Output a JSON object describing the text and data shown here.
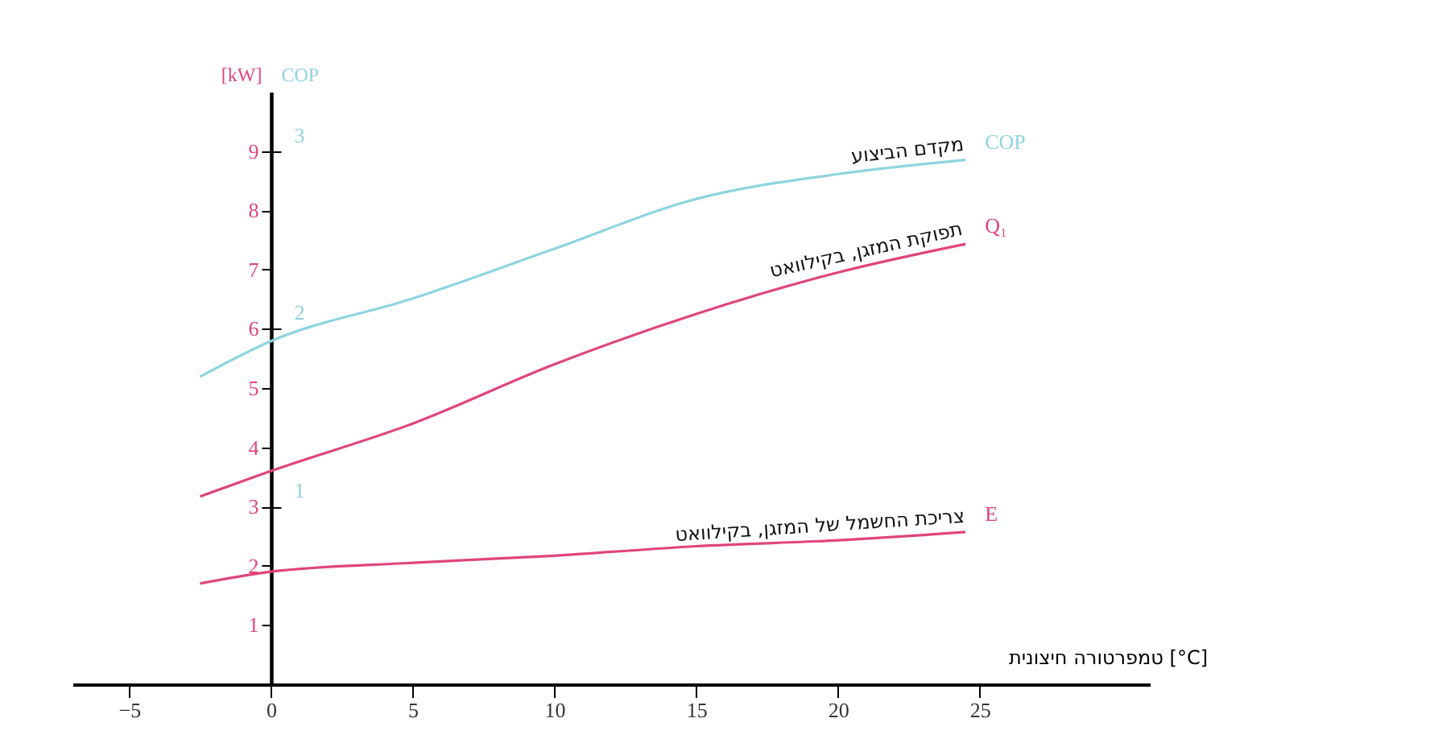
{
  "chart_data": {
    "type": "line",
    "xlabel": "טמפרטורה חיצונית [°C]",
    "ylabel": "[kW]",
    "y2label": "COP",
    "x": [
      -2.5,
      0,
      5,
      10,
      15,
      20,
      24.5
    ],
    "series": [
      {
        "name": "מקדם הביצוע",
        "color": "#8ed4de",
        "axis": "y2",
        "values": [
          1.73,
          1.93,
          2.17,
          2.45,
          2.73,
          2.87,
          2.95
        ]
      },
      {
        "name": "תפוקת המזגן, בקילוואט",
        "color": "#e0457a",
        "values": [
          3.17,
          3.6,
          4.4,
          5.4,
          6.25,
          6.95,
          7.43
        ]
      },
      {
        "name": "צריכת החשמל של המזגן, בקילוואט",
        "color": "#e0457a",
        "values": [
          1.7,
          1.9,
          2.05,
          2.17,
          2.33,
          2.43,
          2.57
        ]
      }
    ],
    "annotations": [
      "COP",
      "Q₁",
      "E"
    ],
    "xlim": [
      -7,
      31
    ],
    "xticks": [
      -5,
      0,
      5,
      10,
      15,
      20,
      25
    ],
    "ylim": [
      0,
      10
    ],
    "yticks": [
      1,
      2,
      3,
      4,
      5,
      6,
      7,
      8,
      9
    ],
    "y2lim": [
      0,
      3.333
    ],
    "y2ticks": [
      1,
      2,
      3
    ],
    "marker": "none",
    "line_style": "solid"
  }
}
